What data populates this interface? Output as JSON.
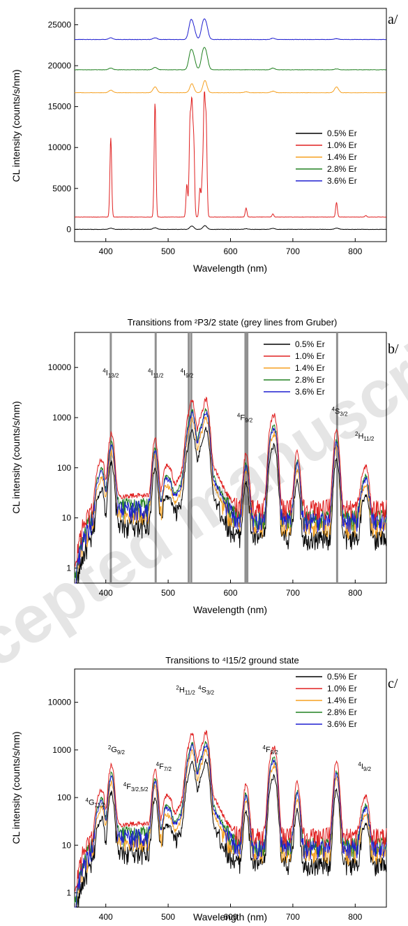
{
  "watermark": "Accepted manuscript",
  "chart_data": [
    {
      "panel": "a/",
      "type": "line",
      "title": "",
      "xlabel": "Wavelength (nm)",
      "ylabel": "CL intensity (counts/s/nm)",
      "xlim": [
        350,
        850
      ],
      "ylim": [
        -1500,
        27000
      ],
      "yscale": "linear",
      "xticks": [
        400,
        500,
        600,
        700,
        800
      ],
      "yticks": [
        0,
        5000,
        10000,
        15000,
        20000,
        25000
      ],
      "legend": "right",
      "series": [
        {
          "name": "0.5% Er",
          "color": "#000000",
          "baseline": 0,
          "peaks": [
            [
              408,
              150
            ],
            [
              479,
              200
            ],
            [
              538,
              400
            ],
            [
              559,
              450
            ],
            [
              625,
              80
            ],
            [
              668,
              120
            ],
            [
              770,
              150
            ]
          ]
        },
        {
          "name": "1.0% Er",
          "color": "#e02020",
          "baseline": 1500,
          "peaks": [
            [
              408,
              9700
            ],
            [
              479,
              14000
            ],
            [
              530,
              4000
            ],
            [
              535,
              11000
            ],
            [
              538,
              12700
            ],
            [
              541,
              9000
            ],
            [
              551,
              3500
            ],
            [
              555,
              4700
            ],
            [
              558,
              13800
            ],
            [
              561,
              11000
            ],
            [
              625,
              1100
            ],
            [
              668,
              400
            ],
            [
              770,
              1800
            ],
            [
              817,
              200
            ]
          ]
        },
        {
          "name": "1.4% Er",
          "color": "#f5a020",
          "baseline": 16700,
          "peaks": [
            [
              408,
              300
            ],
            [
              479,
              700
            ],
            [
              538,
              1100
            ],
            [
              559,
              1500
            ],
            [
              625,
              100
            ],
            [
              668,
              180
            ],
            [
              770,
              700
            ]
          ]
        },
        {
          "name": "2.8% Er",
          "color": "#208020",
          "baseline": 19500,
          "peaks": [
            [
              408,
              200
            ],
            [
              479,
              300
            ],
            [
              536,
              2000
            ],
            [
              541,
              1300
            ],
            [
              556,
              2000
            ],
            [
              561,
              1700
            ],
            [
              668,
              200
            ],
            [
              770,
              100
            ]
          ]
        },
        {
          "name": "3.6% Er",
          "color": "#1f1fd0",
          "baseline": 23200,
          "peaks": [
            [
              408,
              200
            ],
            [
              479,
              200
            ],
            [
              536,
              2000
            ],
            [
              541,
              1200
            ],
            [
              556,
              1800
            ],
            [
              561,
              1600
            ],
            [
              668,
              150
            ],
            [
              770,
              100
            ]
          ]
        }
      ]
    },
    {
      "panel": "b/",
      "type": "line",
      "title": "Transitions from ²P3/2 state (grey lines from Gruber)",
      "xlabel": "Wavelength (nm)",
      "ylabel": "CL intensity (counts/s/nm)",
      "xlim": [
        350,
        850
      ],
      "ylim": [
        0.5,
        50000
      ],
      "yscale": "log",
      "xticks": [
        400,
        500,
        600,
        700,
        800
      ],
      "yticks": [
        1,
        10,
        100,
        1000,
        10000
      ],
      "legend": "top-right",
      "grey_lines": [
        408,
        480,
        533,
        537,
        624,
        627,
        771
      ],
      "annotations": [
        {
          "label": "4I13/2",
          "x": 408,
          "y": 7000
        },
        {
          "label": "4I11/2",
          "x": 480,
          "y": 7000
        },
        {
          "label": "4I9/2",
          "x": 530,
          "y": 7000
        },
        {
          "label": "4F9/2",
          "x": 623,
          "y": 900
        },
        {
          "label": "4S3/2",
          "x": 775,
          "y": 1200
        },
        {
          "label": "2H11/2",
          "x": 815,
          "y": 380
        }
      ],
      "series": [
        {
          "name": "0.5% Er",
          "color": "#000000",
          "scale": 1
        },
        {
          "name": "1.0% Er",
          "color": "#e02020",
          "scale": 4
        },
        {
          "name": "1.4% Er",
          "color": "#f5a020",
          "scale": 1.7
        },
        {
          "name": "2.8% Er",
          "color": "#208020",
          "scale": 2.5
        },
        {
          "name": "3.6% Er",
          "color": "#1f1fd0",
          "scale": 2.2
        }
      ]
    },
    {
      "panel": "c/",
      "type": "line",
      "title": "Transitions to ⁴I15/2 ground state",
      "xlabel": "Wavelength (nm)",
      "ylabel": "CL intensity (counts/s/nm)",
      "xlim": [
        350,
        850
      ],
      "ylim": [
        0.5,
        50000
      ],
      "yscale": "log",
      "xticks": [
        400,
        500,
        600,
        700,
        800
      ],
      "yticks": [
        1,
        10,
        100,
        1000,
        10000
      ],
      "legend": "top-right",
      "annotations": [
        {
          "label": "4G11/2",
          "x": 383,
          "y": 70
        },
        {
          "label": "2G9/2",
          "x": 417,
          "y": 900
        },
        {
          "label": "4F3/2,5/2",
          "x": 448,
          "y": 150
        },
        {
          "label": "4F7/2",
          "x": 493,
          "y": 400
        },
        {
          "label": "2H11/2",
          "x": 528,
          "y": 16000
        },
        {
          "label": "4S3/2",
          "x": 561,
          "y": 16000
        },
        {
          "label": "4F9/2",
          "x": 664,
          "y": 900
        },
        {
          "label": "4I9/2",
          "x": 815,
          "y": 400
        }
      ],
      "series": [
        {
          "name": "0.5% Er",
          "color": "#000000",
          "scale": 1
        },
        {
          "name": "1.0% Er",
          "color": "#e02020",
          "scale": 4
        },
        {
          "name": "1.4% Er",
          "color": "#f5a020",
          "scale": 1.7
        },
        {
          "name": "2.8% Er",
          "color": "#208020",
          "scale": 2.5
        },
        {
          "name": "3.6% Er",
          "color": "#1f1fd0",
          "scale": 2.2
        }
      ]
    }
  ]
}
